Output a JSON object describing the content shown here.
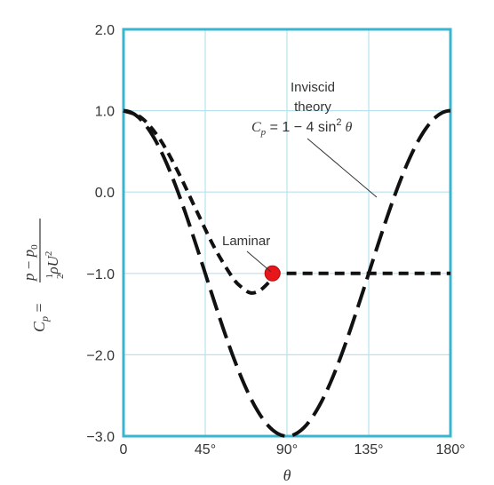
{
  "chart_data": {
    "type": "line",
    "title": "",
    "xlabel": "θ",
    "ylabel": "Cp = (p − p0) / (½ρU²)",
    "xlim": [
      0,
      180
    ],
    "ylim": [
      -3.0,
      2.0
    ],
    "x_ticks": [
      0,
      45,
      90,
      135,
      180
    ],
    "x_tick_labels": [
      "0",
      "45°",
      "90°",
      "135°",
      "180°"
    ],
    "y_ticks": [
      2.0,
      1.0,
      0.0,
      -1.0,
      -2.0,
      -3.0
    ],
    "y_tick_labels": [
      "2.0",
      "1.0",
      "0.0",
      "−1.0",
      "−2.0",
      "−3.0"
    ],
    "grid": true,
    "colors": {
      "frame": "#3ab5d0",
      "grid": "#b8e3ee",
      "curve": "#111111",
      "marker": "#e8161b"
    },
    "series": [
      {
        "name": "Inviscid theory",
        "formula": "Cp = 1 − 4 sin² θ",
        "x": [
          0,
          10,
          20,
          30,
          40,
          45,
          50,
          60,
          70,
          80,
          90,
          100,
          110,
          120,
          130,
          135,
          140,
          150,
          160,
          170,
          180
        ],
        "y": [
          1.0,
          0.879,
          0.532,
          0.0,
          -0.653,
          -1.0,
          -1.347,
          -2.0,
          -2.532,
          -2.879,
          -3.0,
          -2.879,
          -2.532,
          -2.0,
          -1.347,
          -1.0,
          -0.653,
          0.0,
          0.532,
          0.879,
          1.0
        ]
      },
      {
        "name": "Laminar",
        "x": [
          0,
          10,
          20,
          30,
          40,
          50,
          60,
          65,
          70,
          75,
          80,
          82,
          85,
          90,
          100,
          120,
          140,
          160,
          180
        ],
        "y": [
          1.0,
          0.91,
          0.65,
          0.25,
          -0.22,
          -0.68,
          -1.05,
          -1.17,
          -1.24,
          -1.21,
          -1.11,
          -1.06,
          -1.0,
          -1.0,
          -1.0,
          -1.0,
          -1.0,
          -1.0,
          -1.0
        ]
      }
    ],
    "separation_point": {
      "x": 82,
      "y": -1.0
    },
    "annotations": {
      "inviscid_line1": "Inviscid",
      "inviscid_line2": "theory",
      "inviscid_formula": "Cp = 1 − 4 sin² θ",
      "laminar": "Laminar"
    }
  }
}
